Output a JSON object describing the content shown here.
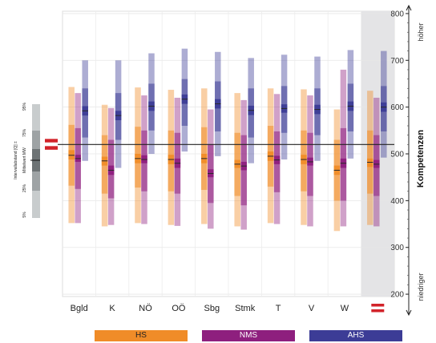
{
  "chart_data": {
    "type": "box",
    "categories": [
      "Bgld",
      "K",
      "NÖ",
      "OÖ",
      "Sbg",
      "Stmk",
      "T",
      "V",
      "W",
      "AT"
    ],
    "series": [
      {
        "name": "HS",
        "color": "#f08c28",
        "values": [
          {
            "p5": 352,
            "p25": 432,
            "ci_lo": 488,
            "mean": 497,
            "ci_hi": 508,
            "p75": 562,
            "p95": 643
          },
          {
            "p5": 345,
            "p25": 415,
            "ci_lo": 475,
            "mean": 485,
            "ci_hi": 494,
            "p75": 540,
            "p95": 605
          },
          {
            "p5": 352,
            "p25": 428,
            "ci_lo": 480,
            "mean": 490,
            "ci_hi": 500,
            "p75": 558,
            "p95": 642
          },
          {
            "p5": 348,
            "p25": 420,
            "ci_lo": 478,
            "mean": 488,
            "ci_hi": 498,
            "p75": 550,
            "p95": 637
          },
          {
            "p5": 350,
            "p25": 423,
            "ci_lo": 480,
            "mean": 490,
            "ci_hi": 500,
            "p75": 557,
            "p95": 640
          },
          {
            "p5": 345,
            "p25": 410,
            "ci_lo": 470,
            "mean": 478,
            "ci_hi": 487,
            "p75": 545,
            "p95": 630
          },
          {
            "p5": 352,
            "p25": 430,
            "ci_lo": 485,
            "mean": 495,
            "ci_hi": 505,
            "p75": 560,
            "p95": 640
          },
          {
            "p5": 348,
            "p25": 420,
            "ci_lo": 478,
            "mean": 488,
            "ci_hi": 498,
            "p75": 550,
            "p95": 638
          },
          {
            "p5": 335,
            "p25": 400,
            "ci_lo": 455,
            "mean": 465,
            "ci_hi": 475,
            "p75": 530,
            "p95": 595
          },
          {
            "p5": 348,
            "p25": 415,
            "ci_lo": 472,
            "mean": 482,
            "ci_hi": 490,
            "p75": 550,
            "p95": 635
          }
        ]
      },
      {
        "name": "NMS",
        "color": "#8e1f7e",
        "values": [
          {
            "p5": 352,
            "p25": 425,
            "ci_lo": 483,
            "mean": 490,
            "ci_hi": 498,
            "p75": 555,
            "p95": 630
          },
          {
            "p5": 348,
            "p25": 405,
            "ci_lo": 455,
            "mean": 465,
            "ci_hi": 475,
            "p75": 530,
            "p95": 598
          },
          {
            "p5": 350,
            "p25": 420,
            "ci_lo": 480,
            "mean": 488,
            "ci_hi": 497,
            "p75": 550,
            "p95": 625
          },
          {
            "p5": 346,
            "p25": 415,
            "ci_lo": 470,
            "mean": 480,
            "ci_hi": 490,
            "p75": 545,
            "p95": 620
          },
          {
            "p5": 340,
            "p25": 395,
            "ci_lo": 450,
            "mean": 458,
            "ci_hi": 467,
            "p75": 520,
            "p95": 595
          },
          {
            "p5": 338,
            "p25": 390,
            "ci_lo": 465,
            "mean": 474,
            "ci_hi": 483,
            "p75": 540,
            "p95": 615
          },
          {
            "p5": 350,
            "p25": 418,
            "ci_lo": 478,
            "mean": 487,
            "ci_hi": 496,
            "p75": 548,
            "p95": 628
          },
          {
            "p5": 345,
            "p25": 410,
            "ci_lo": 475,
            "mean": 483,
            "ci_hi": 492,
            "p75": 545,
            "p95": 625
          },
          {
            "p5": 345,
            "p25": 400,
            "ci_lo": 470,
            "mean": 480,
            "ci_hi": 490,
            "p75": 555,
            "p95": 680
          },
          {
            "p5": 345,
            "p25": 410,
            "ci_lo": 470,
            "mean": 478,
            "ci_hi": 487,
            "p75": 540,
            "p95": 620
          }
        ]
      },
      {
        "name": "AHS",
        "color": "#3c3c96",
        "values": [
          {
            "p5": 485,
            "p25": 535,
            "ci_lo": 582,
            "mean": 592,
            "ci_hi": 602,
            "p75": 640,
            "p95": 700
          },
          {
            "p5": 470,
            "p25": 530,
            "ci_lo": 572,
            "mean": 582,
            "ci_hi": 592,
            "p75": 630,
            "p95": 700
          },
          {
            "p5": 500,
            "p25": 550,
            "ci_lo": 592,
            "mean": 602,
            "ci_hi": 612,
            "p75": 650,
            "p95": 715
          },
          {
            "p5": 505,
            "p25": 560,
            "ci_lo": 607,
            "mean": 617,
            "ci_hi": 627,
            "p75": 660,
            "p95": 725
          },
          {
            "p5": 495,
            "p25": 548,
            "ci_lo": 597,
            "mean": 607,
            "ci_hi": 617,
            "p75": 655,
            "p95": 718
          },
          {
            "p5": 480,
            "p25": 535,
            "ci_lo": 583,
            "mean": 593,
            "ci_hi": 603,
            "p75": 640,
            "p95": 705
          },
          {
            "p5": 488,
            "p25": 545,
            "ci_lo": 588,
            "mean": 597,
            "ci_hi": 606,
            "p75": 645,
            "p95": 712
          },
          {
            "p5": 485,
            "p25": 540,
            "ci_lo": 585,
            "mean": 595,
            "ci_hi": 605,
            "p75": 640,
            "p95": 708
          },
          {
            "p5": 490,
            "p25": 548,
            "ci_lo": 592,
            "mean": 602,
            "ci_hi": 612,
            "p75": 650,
            "p95": 722
          },
          {
            "p5": 492,
            "p25": 548,
            "ci_lo": 590,
            "mean": 600,
            "ci_hi": 610,
            "p75": 645,
            "p95": 720
          }
        ]
      }
    ],
    "reference_line": 520,
    "highlight_category": "AT",
    "ylim": [
      195,
      805
    ],
    "yticks": [
      200,
      300,
      400,
      500,
      600,
      700,
      800
    ],
    "ylabel": "Kompetenzen",
    "ylabel_top": "höher",
    "ylabel_bottom": "niedriger",
    "grid": true,
    "legend_position": "bottom",
    "key": {
      "labels": [
        "95%",
        "75%",
        "Intervallabstand [Q] ±",
        "Mittelwert MW",
        "25%",
        "5%"
      ]
    }
  }
}
